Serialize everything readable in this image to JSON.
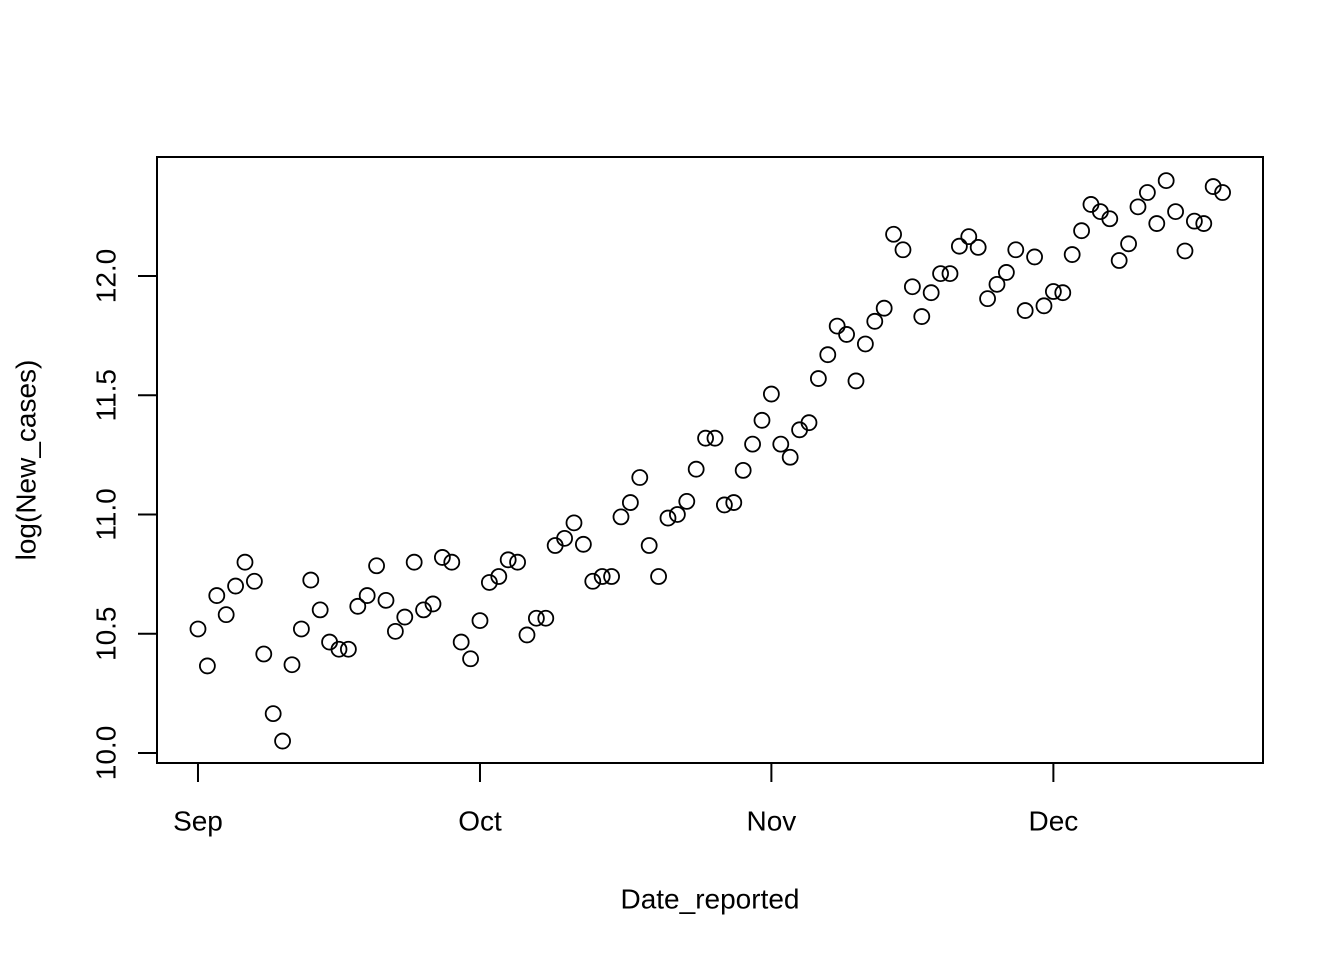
{
  "chart_data": {
    "type": "scatter",
    "x_label": "Date_reported",
    "y_label": "log(New_cases)",
    "x": [
      0,
      1,
      2,
      3,
      4,
      5,
      6,
      7,
      8,
      9,
      10,
      11,
      12,
      13,
      14,
      15,
      16,
      17,
      18,
      19,
      20,
      21,
      22,
      23,
      24,
      25,
      26,
      27,
      28,
      29,
      30,
      31,
      32,
      33,
      34,
      35,
      36,
      37,
      38,
      39,
      40,
      41,
      42,
      43,
      44,
      45,
      46,
      47,
      48,
      49,
      50,
      51,
      52,
      53,
      54,
      55,
      56,
      57,
      58,
      59,
      60,
      61,
      62,
      63,
      64,
      65,
      66,
      67,
      68,
      69,
      70,
      71,
      72,
      73,
      74,
      75,
      76,
      77,
      78,
      79,
      80,
      81,
      82,
      83,
      84,
      85,
      86,
      87,
      88,
      89,
      90,
      91,
      92,
      93,
      94,
      95,
      96,
      97,
      98,
      99,
      100,
      101,
      102,
      103,
      104,
      105,
      106,
      107,
      108,
      109
    ],
    "values": [
      10.52,
      10.365,
      10.66,
      10.58,
      10.7,
      10.8,
      10.72,
      10.415,
      10.165,
      10.05,
      10.37,
      10.52,
      10.725,
      10.6,
      10.465,
      10.435,
      10.435,
      10.615,
      10.66,
      10.785,
      10.64,
      10.51,
      10.57,
      10.8,
      10.6,
      10.625,
      10.82,
      10.8,
      10.465,
      10.395,
      10.555,
      10.715,
      10.74,
      10.81,
      10.8,
      10.495,
      10.565,
      10.565,
      10.87,
      10.9,
      10.965,
      10.875,
      10.72,
      10.74,
      10.74,
      10.99,
      11.05,
      11.155,
      10.87,
      10.74,
      10.985,
      11.0,
      11.055,
      11.19,
      11.32,
      11.32,
      11.04,
      11.05,
      11.185,
      11.295,
      11.395,
      11.505,
      11.295,
      11.24,
      11.355,
      11.385,
      11.57,
      11.67,
      11.79,
      11.755,
      11.56,
      11.715,
      11.81,
      11.865,
      12.175,
      12.11,
      11.955,
      11.83,
      11.93,
      12.01,
      12.01,
      12.125,
      12.165,
      12.12,
      11.905,
      11.965,
      12.015,
      12.11,
      11.855,
      12.08,
      11.875,
      11.935,
      11.93,
      12.09,
      12.19,
      12.3,
      12.27,
      12.24,
      12.065,
      12.135,
      12.29,
      12.35,
      12.22,
      12.4,
      12.27,
      12.105,
      12.23,
      12.22,
      12.375,
      12.35
    ],
    "color": "#000000",
    "xlim": [
      -4.36,
      113.3
    ],
    "ylim": [
      9.958,
      12.499
    ],
    "xticks": [
      {
        "value": 0,
        "label": "Sep"
      },
      {
        "value": 30,
        "label": "Oct"
      },
      {
        "value": 61,
        "label": "Nov"
      },
      {
        "value": 91,
        "label": "Dec"
      }
    ],
    "yticks": [
      {
        "value": 10,
        "label": "10.0"
      },
      10.5,
      {
        "value": 11,
        "label": "11.0"
      },
      11.5,
      {
        "value": 12,
        "label": "12.0"
      }
    ],
    "grid": false
  }
}
